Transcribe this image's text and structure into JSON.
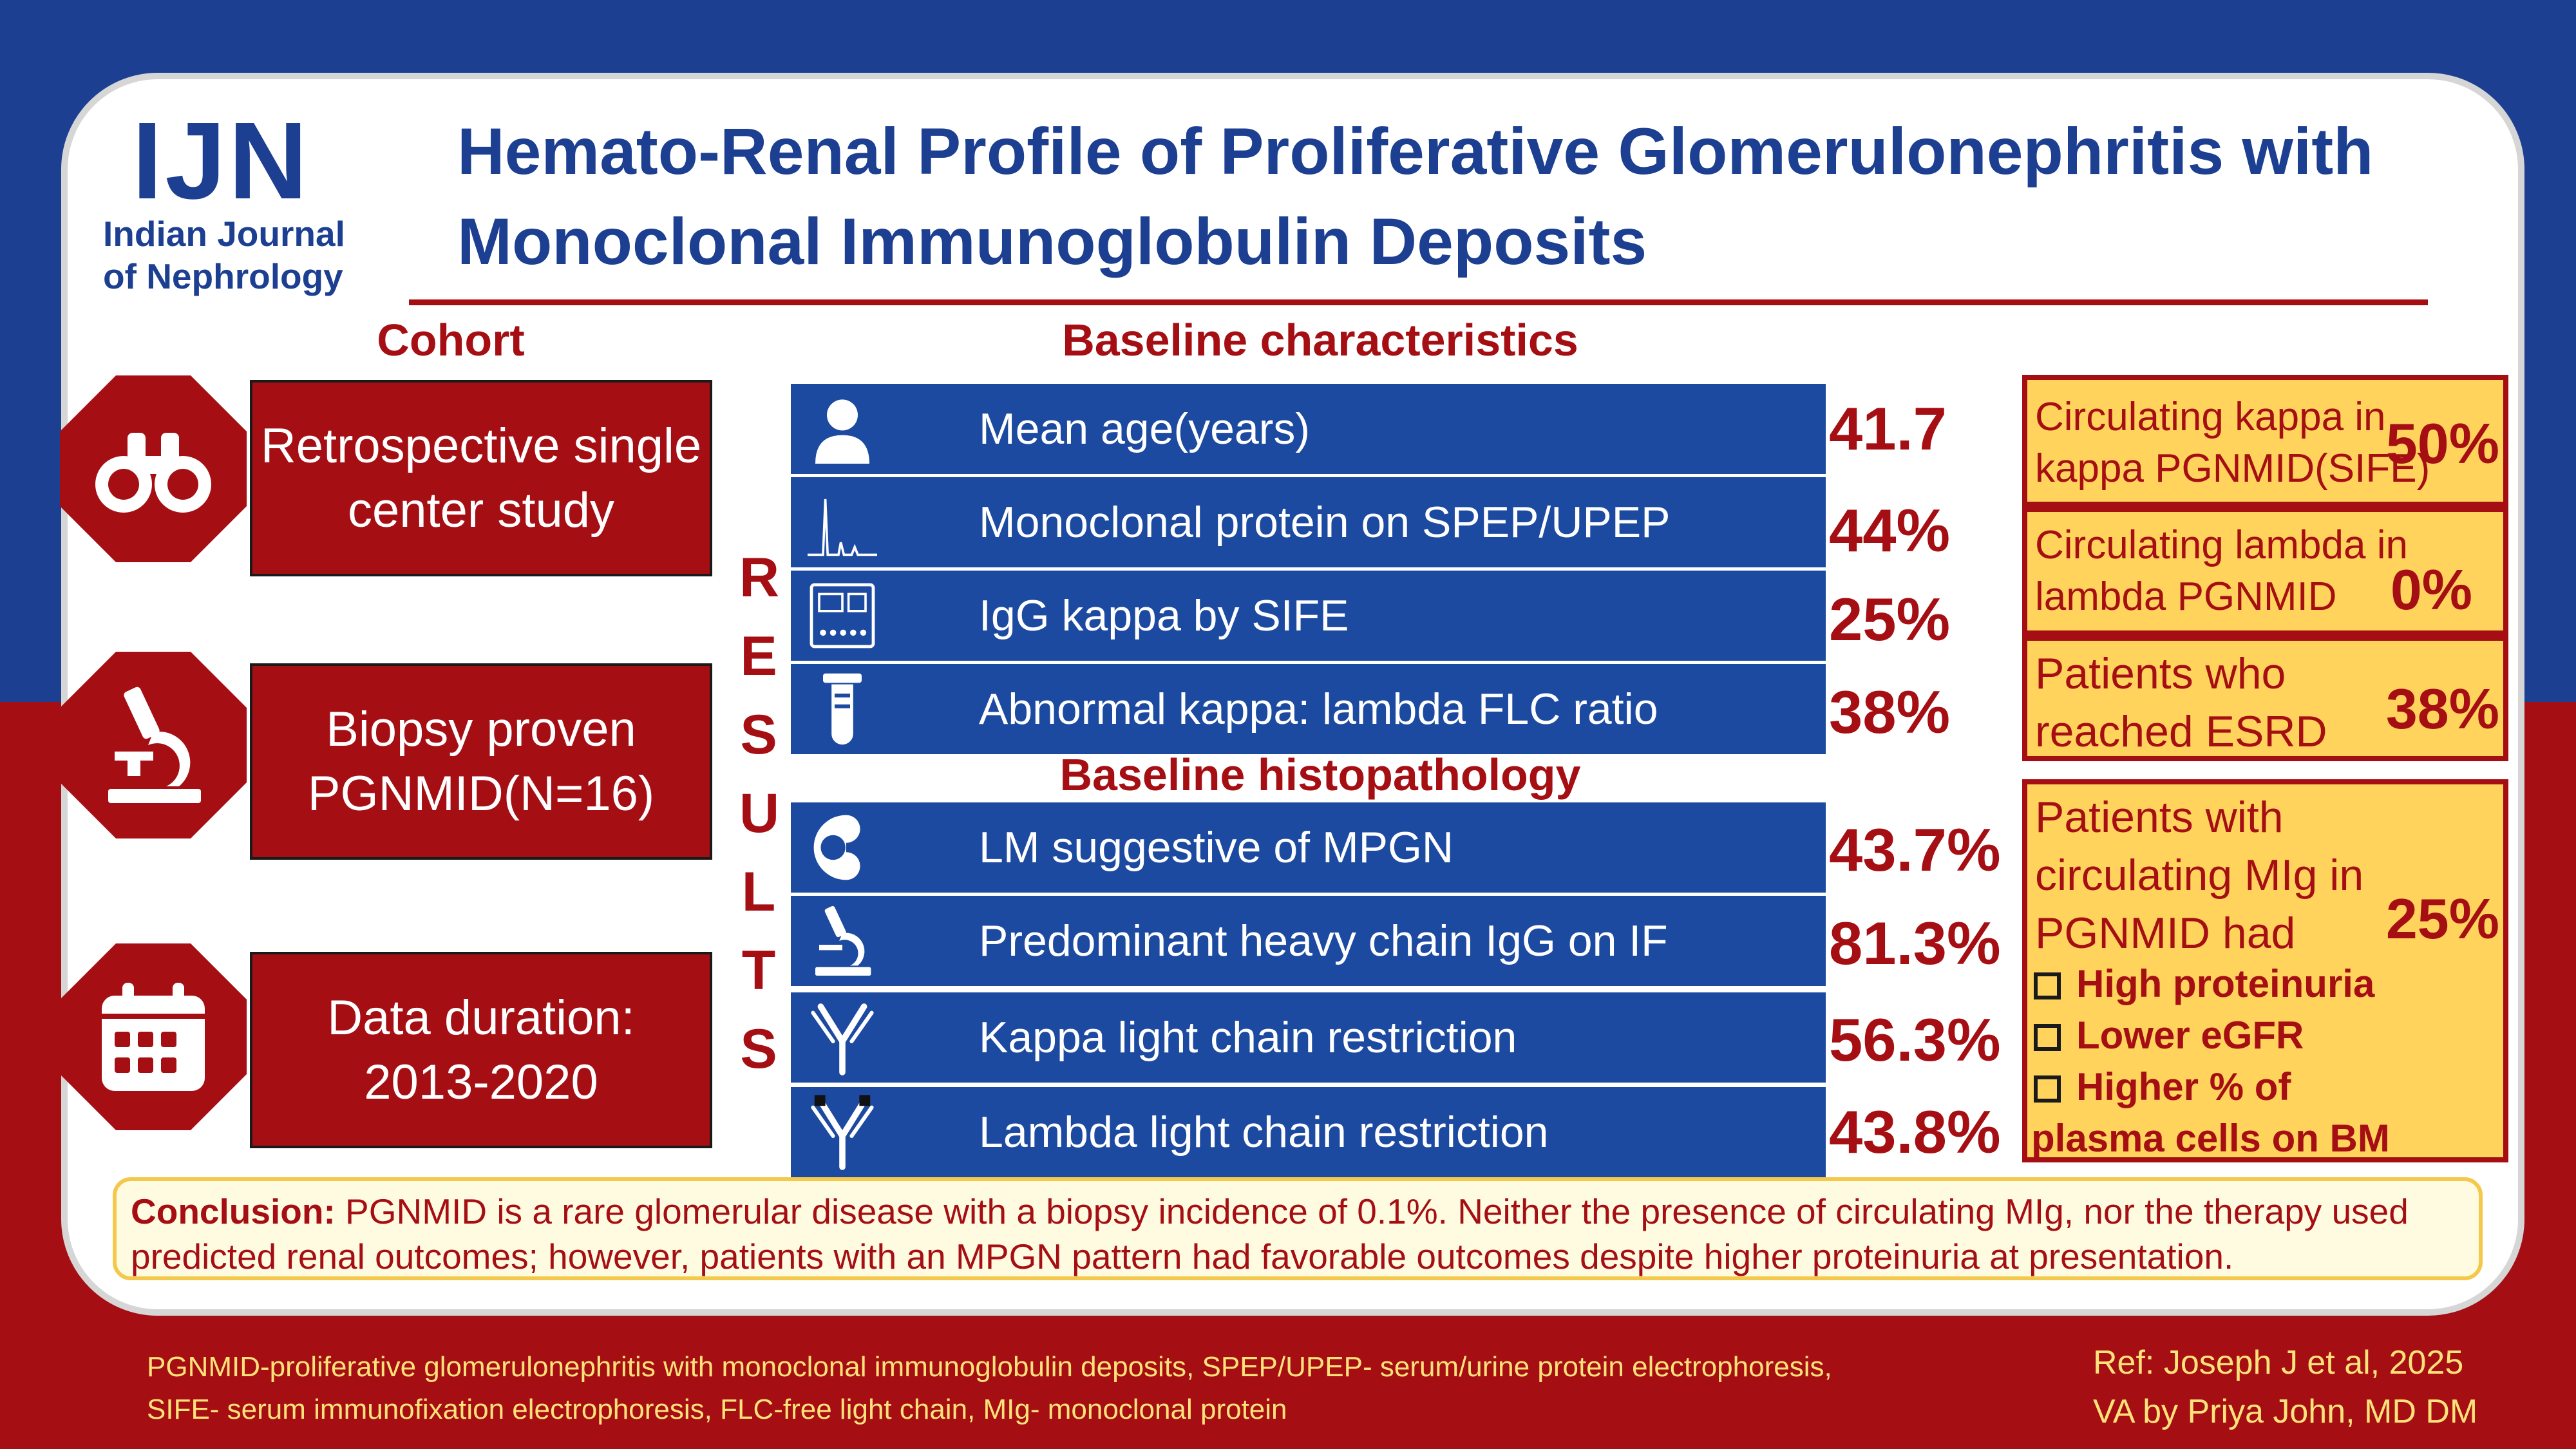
{
  "colors": {
    "navy": "#1c3f91",
    "dark_red": "#a50f14",
    "row_blue": "#1c4aa0",
    "highlight_yellow": "#ffd35c",
    "footer_text": "#ffe27a"
  },
  "logo": {
    "main": "IJN",
    "sub_line1": "Indian Journal",
    "sub_line2": "of Nephrology"
  },
  "title": {
    "line1": "Hemato-Renal Profile of Proliferative Glomerulonephritis with",
    "line2": "Monoclonal Immunoglobulin Deposits"
  },
  "cohort": {
    "heading": "Cohort",
    "items": [
      {
        "icon": "binoculars-icon",
        "text": "Retrospective single center study"
      },
      {
        "icon": "microscope-icon",
        "text": "Biopsy proven PGNMID(N=16)"
      },
      {
        "icon": "calendar-icon",
        "text": "Data duration: 2013-2020"
      }
    ]
  },
  "results_letters": [
    "R",
    "E",
    "S",
    "U",
    "L",
    "T",
    "S"
  ],
  "baseline": {
    "heading": "Baseline characteristics",
    "rows": [
      {
        "icon": "person-icon",
        "label": "Mean age(years)",
        "value": "41.7"
      },
      {
        "icon": "electrophoresis-graph-icon",
        "label": "Monoclonal protein on SPEP/UPEP",
        "value": "44%"
      },
      {
        "icon": "lab-analyzer-icon",
        "label": "IgG kappa by SIFE",
        "value": "25%"
      },
      {
        "icon": "test-tube-icon",
        "label": "Abnormal kappa: lambda FLC ratio",
        "value": "38%"
      }
    ]
  },
  "histopathology": {
    "heading": "Baseline histopathology",
    "rows": [
      {
        "icon": "kidney-icon",
        "label": "LM suggestive of MPGN",
        "value": "43.7%"
      },
      {
        "icon": "microscope-icon",
        "label": "Predominant heavy chain IgG on IF",
        "value": "81.3%"
      },
      {
        "icon": "antibody-icon",
        "label": "Kappa light chain restriction",
        "value": "56.3%"
      },
      {
        "icon": "antibody-icon",
        "label": "Lambda light chain restriction",
        "value": "43.8%"
      }
    ]
  },
  "side_results": [
    {
      "line1": "Circulating kappa in",
      "line2": "kappa PGNMID(SIFE)",
      "value": "50%"
    },
    {
      "line1": "Circulating lambda in",
      "line2": "lambda PGNMID",
      "value": "0%"
    },
    {
      "line1": "Patients who",
      "line2": "reached ESRD",
      "value": "38%"
    }
  ],
  "circulating_mig": {
    "line1": "Patients with",
    "line2": "circulating MIg in",
    "line3": "PGNMID had",
    "value": "25%",
    "bullets": [
      "High proteinuria",
      "Lower eGFR",
      "Higher % of"
    ],
    "tail": "plasma cells on BM"
  },
  "conclusion": {
    "label": "Conclusion:",
    "text": "PGNMID is a rare glomerular disease with a biopsy incidence of 0.1%. Neither the presence of circulating MIg, nor the therapy used predicted renal outcomes; however, patients with an MPGN pattern had favorable outcomes despite higher proteinuria at presentation."
  },
  "footer": {
    "abbrev_line1": "PGNMID-proliferative glomerulonephritis with monoclonal immunoglobulin deposits, SPEP/UPEP- serum/urine protein electrophoresis,",
    "abbrev_line2": "SIFE- serum immunofixation electrophoresis, FLC-free light chain, MIg- monoclonal protein",
    "ref": "Ref: Joseph J et al, 2025",
    "credit": "VA by Priya John, MD DM"
  }
}
